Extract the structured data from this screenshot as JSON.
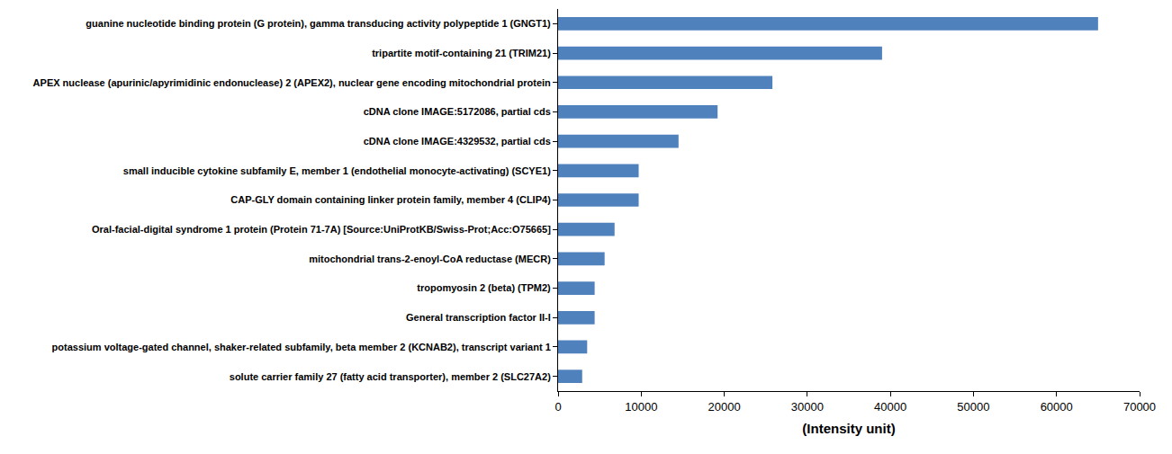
{
  "chart_data": {
    "type": "bar",
    "orientation": "horizontal",
    "x_label": "(Intensity unit)",
    "categories": [
      "guanine nucleotide binding protein (G protein), gamma transducing activity polypeptide 1 (GNGT1)",
      "tripartite motif-containing 21 (TRIM21)",
      "APEX nuclease (apurinic/apyrimidinic endonuclease) 2 (APEX2), nuclear gene encoding mitochondrial protein",
      "cDNA clone IMAGE:5172086, partial cds",
      "cDNA clone IMAGE:4329532, partial cds",
      "small inducible cytokine subfamily E, member 1 (endothelial monocyte-activating) (SCYE1)",
      "CAP-GLY domain containing linker protein family, member 4 (CLIP4)",
      "Oral-facial-digital syndrome 1 protein (Protein 71-7A) [Source:UniProtKB/Swiss-Prot;Acc:O75665]",
      "mitochondrial trans-2-enoyl-CoA reductase (MECR)",
      "tropomyosin 2 (beta) (TPM2)",
      "General transcription factor II-I",
      "potassium voltage-gated channel, shaker-related subfamily, beta member 2 (KCNAB2), transcript variant 1",
      "solute carrier family 27 (fatty acid transporter), member 2 (SLC27A2)"
    ],
    "values": [
      65000,
      39000,
      25800,
      19200,
      14500,
      9700,
      9700,
      6800,
      5600,
      4400,
      4400,
      3500,
      2900
    ],
    "color": "#4f81bd",
    "xlim": [
      0,
      70000
    ],
    "xticks": [
      0,
      10000,
      20000,
      30000,
      40000,
      50000,
      60000,
      70000
    ],
    "grid": false
  }
}
